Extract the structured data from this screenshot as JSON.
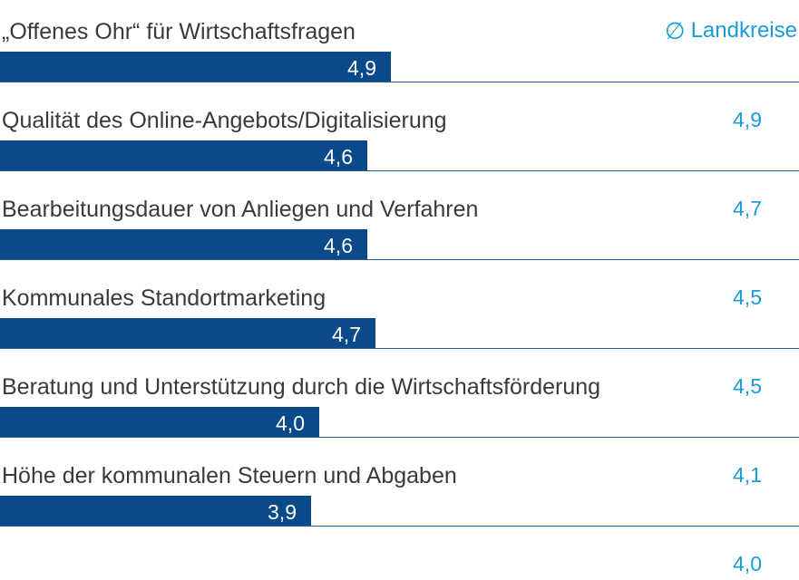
{
  "colors": {
    "bar": "#0a4a8a",
    "accent": "#1a9cd8",
    "text": "#3a3a3a",
    "line": "#1f5f9a"
  },
  "legend": {
    "icon": "average-symbol",
    "symbol": "∅",
    "label": "Landkreise"
  },
  "chart_data": {
    "type": "bar",
    "orientation": "horizontal",
    "categories": [
      "„Offenes Ohr“ für Wirtschaftsfragen",
      "Qualität des Online-Angebots/Digitalisierung",
      "Bearbeitungsdauer von Anliegen und Verfahren",
      "Kommunales Standortmarketing",
      "Beratung und Unterstützung durch die Wirtschaftsförderung",
      "Höhe der kommunalen Steuern und Abgaben"
    ],
    "values": [
      4.9,
      4.6,
      4.6,
      4.7,
      4.0,
      3.9
    ],
    "value_labels": [
      "4,9",
      "4,6",
      "4,6",
      "4,7",
      "4,0",
      "3,9"
    ],
    "comparison_values": [
      4.9,
      4.7,
      4.5,
      4.5,
      4.1,
      4.0
    ],
    "comparison_labels": [
      "4,9",
      "4,7",
      "4,5",
      "4,5",
      "4,1",
      "4,0"
    ],
    "comparison_name": "Landkreise"
  }
}
